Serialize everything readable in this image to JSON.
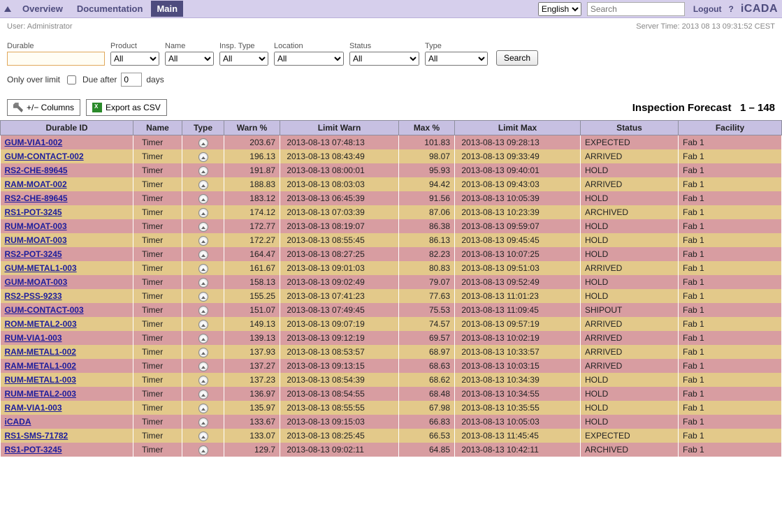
{
  "nav": {
    "overview": "Overview",
    "documentation": "Documentation",
    "main": "Main",
    "language_selected": "English",
    "search_placeholder": "Search",
    "logout": "Logout",
    "help": "?",
    "brand": "iCADA"
  },
  "subbar": {
    "user_label": "User:",
    "user_value": "Administrator",
    "server_time_label": "Server Time:",
    "server_time_value": "2013 08 13 09:31:52 CEST"
  },
  "filters": {
    "durable_label": "Durable",
    "durable_value": "",
    "product_label": "Product",
    "product_selected": "All",
    "name_label": "Name",
    "name_selected": "All",
    "insp_type_label": "Insp. Type",
    "insp_type_selected": "All",
    "location_label": "Location",
    "location_selected": "All",
    "status_label": "Status",
    "status_selected": "All",
    "type_label": "Type",
    "type_selected": "All",
    "search_btn": "Search",
    "only_over_limit_label": "Only over limit",
    "due_after_label": "Due after",
    "due_after_value": "0",
    "days_label": "days"
  },
  "toolbar": {
    "columns_btn": "+/− Columns",
    "export_btn": "Export as CSV",
    "forecast_title": "Inspection Forecast",
    "range": "1 – 148"
  },
  "columns": {
    "durable": "Durable ID",
    "name": "Name",
    "type": "Type",
    "warn": "Warn %",
    "lwarn": "Limit Warn",
    "max": "Max %",
    "lmax": "Limit Max",
    "status": "Status",
    "facility": "Facility"
  },
  "row_colors": {
    "red": "#d89da1",
    "yellow": "#e3c98a"
  },
  "header_bg": "#c7c0e2",
  "topbar_bg": "#d6cfec",
  "rows": [
    {
      "c": "red",
      "id": "GUM-VIA1-002",
      "name": "Timer",
      "warn": "203.67",
      "lwarn": "2013-08-13 07:48:13",
      "max": "101.83",
      "lmax": "2013-08-13 09:28:13",
      "status": "EXPECTED",
      "fac": "Fab 1"
    },
    {
      "c": "yellow",
      "id": "GUM-CONTACT-002",
      "name": "Timer",
      "warn": "196.13",
      "lwarn": "2013-08-13 08:43:49",
      "max": "98.07",
      "lmax": "2013-08-13 09:33:49",
      "status": "ARRIVED",
      "fac": "Fab 1"
    },
    {
      "c": "red",
      "id": "RS2-CHE-89645",
      "name": "Timer",
      "warn": "191.87",
      "lwarn": "2013-08-13 08:00:01",
      "max": "95.93",
      "lmax": "2013-08-13 09:40:01",
      "status": "HOLD",
      "fac": "Fab 1"
    },
    {
      "c": "yellow",
      "id": "RAM-MOAT-002",
      "name": "Timer",
      "warn": "188.83",
      "lwarn": "2013-08-13 08:03:03",
      "max": "94.42",
      "lmax": "2013-08-13 09:43:03",
      "status": "ARRIVED",
      "fac": "Fab 1"
    },
    {
      "c": "red",
      "id": "RS2-CHE-89645",
      "name": "Timer",
      "warn": "183.12",
      "lwarn": "2013-08-13 06:45:39",
      "max": "91.56",
      "lmax": "2013-08-13 10:05:39",
      "status": "HOLD",
      "fac": "Fab 1"
    },
    {
      "c": "yellow",
      "id": "RS1-POT-3245",
      "name": "Timer",
      "warn": "174.12",
      "lwarn": "2013-08-13 07:03:39",
      "max": "87.06",
      "lmax": "2013-08-13 10:23:39",
      "status": "ARCHIVED",
      "fac": "Fab 1"
    },
    {
      "c": "red",
      "id": "RUM-MOAT-003",
      "name": "Timer",
      "warn": "172.77",
      "lwarn": "2013-08-13 08:19:07",
      "max": "86.38",
      "lmax": "2013-08-13 09:59:07",
      "status": "HOLD",
      "fac": "Fab 1"
    },
    {
      "c": "yellow",
      "id": "RUM-MOAT-003",
      "name": "Timer",
      "warn": "172.27",
      "lwarn": "2013-08-13 08:55:45",
      "max": "86.13",
      "lmax": "2013-08-13 09:45:45",
      "status": "HOLD",
      "fac": "Fab 1"
    },
    {
      "c": "red",
      "id": "RS2-POT-3245",
      "name": "Timer",
      "warn": "164.47",
      "lwarn": "2013-08-13 08:27:25",
      "max": "82.23",
      "lmax": "2013-08-13 10:07:25",
      "status": "HOLD",
      "fac": "Fab 1"
    },
    {
      "c": "yellow",
      "id": "GUM-METAL1-003",
      "name": "Timer",
      "warn": "161.67",
      "lwarn": "2013-08-13 09:01:03",
      "max": "80.83",
      "lmax": "2013-08-13 09:51:03",
      "status": "ARRIVED",
      "fac": "Fab 1"
    },
    {
      "c": "red",
      "id": "GUM-MOAT-003",
      "name": "Timer",
      "warn": "158.13",
      "lwarn": "2013-08-13 09:02:49",
      "max": "79.07",
      "lmax": "2013-08-13 09:52:49",
      "status": "HOLD",
      "fac": "Fab 1"
    },
    {
      "c": "yellow",
      "id": "RS2-PSS-9233",
      "name": "Timer",
      "warn": "155.25",
      "lwarn": "2013-08-13 07:41:23",
      "max": "77.63",
      "lmax": "2013-08-13 11:01:23",
      "status": "HOLD",
      "fac": "Fab 1"
    },
    {
      "c": "red",
      "id": "GUM-CONTACT-003",
      "name": "Timer",
      "warn": "151.07",
      "lwarn": "2013-08-13 07:49:45",
      "max": "75.53",
      "lmax": "2013-08-13 11:09:45",
      "status": "SHIPOUT",
      "fac": "Fab 1"
    },
    {
      "c": "yellow",
      "id": "ROM-METAL2-003",
      "name": "Timer",
      "warn": "149.13",
      "lwarn": "2013-08-13 09:07:19",
      "max": "74.57",
      "lmax": "2013-08-13 09:57:19",
      "status": "ARRIVED",
      "fac": "Fab 1"
    },
    {
      "c": "red",
      "id": "RUM-VIA1-003",
      "name": "Timer",
      "warn": "139.13",
      "lwarn": "2013-08-13 09:12:19",
      "max": "69.57",
      "lmax": "2013-08-13 10:02:19",
      "status": "ARRIVED",
      "fac": "Fab 1"
    },
    {
      "c": "yellow",
      "id": "RAM-METAL1-002",
      "name": "Timer",
      "warn": "137.93",
      "lwarn": "2013-08-13 08:53:57",
      "max": "68.97",
      "lmax": "2013-08-13 10:33:57",
      "status": "ARRIVED",
      "fac": "Fab 1"
    },
    {
      "c": "red",
      "id": "RAM-METAL1-002",
      "name": "Timer",
      "warn": "137.27",
      "lwarn": "2013-08-13 09:13:15",
      "max": "68.63",
      "lmax": "2013-08-13 10:03:15",
      "status": "ARRIVED",
      "fac": "Fab 1"
    },
    {
      "c": "yellow",
      "id": "RUM-METAL1-003",
      "name": "Timer",
      "warn": "137.23",
      "lwarn": "2013-08-13 08:54:39",
      "max": "68.62",
      "lmax": "2013-08-13 10:34:39",
      "status": "HOLD",
      "fac": "Fab 1"
    },
    {
      "c": "red",
      "id": "RUM-METAL2-003",
      "name": "Timer",
      "warn": "136.97",
      "lwarn": "2013-08-13 08:54:55",
      "max": "68.48",
      "lmax": "2013-08-13 10:34:55",
      "status": "HOLD",
      "fac": "Fab 1"
    },
    {
      "c": "yellow",
      "id": "RAM-VIA1-003",
      "name": "Timer",
      "warn": "135.97",
      "lwarn": "2013-08-13 08:55:55",
      "max": "67.98",
      "lmax": "2013-08-13 10:35:55",
      "status": "HOLD",
      "fac": "Fab 1"
    },
    {
      "c": "red",
      "id": "iCADA",
      "name": "Timer",
      "warn": "133.67",
      "lwarn": "2013-08-13 09:15:03",
      "max": "66.83",
      "lmax": "2013-08-13 10:05:03",
      "status": "HOLD",
      "fac": "Fab 1"
    },
    {
      "c": "yellow",
      "id": "RS1-SMS-71782",
      "name": "Timer",
      "warn": "133.07",
      "lwarn": "2013-08-13 08:25:45",
      "max": "66.53",
      "lmax": "2013-08-13 11:45:45",
      "status": "EXPECTED",
      "fac": "Fab 1"
    },
    {
      "c": "red",
      "id": "RS1-POT-3245",
      "name": "Timer",
      "warn": "129.7",
      "lwarn": "2013-08-13 09:02:11",
      "max": "64.85",
      "lmax": "2013-08-13 10:42:11",
      "status": "ARCHIVED",
      "fac": "Fab 1"
    }
  ]
}
